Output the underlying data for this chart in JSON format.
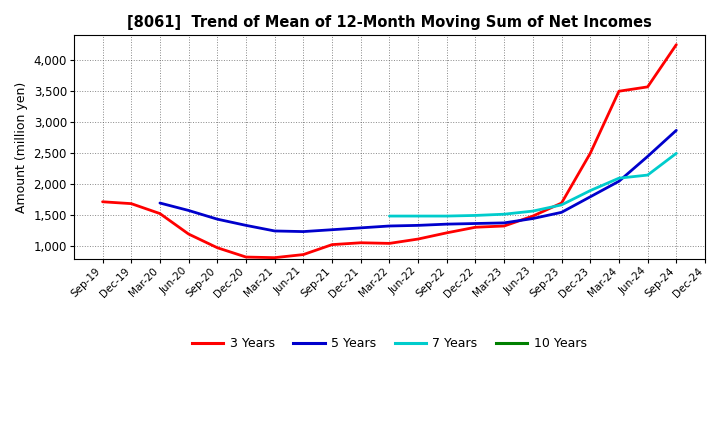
{
  "title": "[8061]  Trend of Mean of 12-Month Moving Sum of Net Incomes",
  "ylabel": "Amount (million yen)",
  "fig_bg_color": "#ffffff",
  "plot_bg_color": "#ffffff",
  "x_labels": [
    "Sep-19",
    "Dec-19",
    "Mar-20",
    "Jun-20",
    "Sep-20",
    "Dec-20",
    "Mar-21",
    "Jun-21",
    "Sep-21",
    "Dec-21",
    "Mar-22",
    "Jun-22",
    "Sep-22",
    "Dec-22",
    "Mar-23",
    "Jun-23",
    "Sep-23",
    "Dec-23",
    "Mar-24",
    "Jun-24",
    "Sep-24",
    "Dec-24"
  ],
  "ylim": [
    800,
    4400
  ],
  "yticks": [
    1000,
    1500,
    2000,
    2500,
    3000,
    3500,
    4000
  ],
  "series": {
    "3 Years": {
      "color": "#ff0000",
      "linewidth": 2.0,
      "values": [
        1720,
        1690,
        1530,
        1200,
        980,
        830,
        820,
        870,
        1030,
        1060,
        1050,
        1120,
        1220,
        1310,
        1330,
        1490,
        1700,
        2500,
        3500,
        3570,
        4250,
        null
      ]
    },
    "5 Years": {
      "color": "#0000cc",
      "linewidth": 2.0,
      "values": [
        null,
        null,
        1700,
        1580,
        1440,
        1340,
        1250,
        1240,
        1270,
        1300,
        1330,
        1340,
        1360,
        1370,
        1380,
        1450,
        1550,
        1800,
        2050,
        2450,
        2870,
        null
      ]
    },
    "7 Years": {
      "color": "#00cccc",
      "linewidth": 2.0,
      "values": [
        null,
        null,
        null,
        null,
        null,
        null,
        null,
        null,
        null,
        null,
        1490,
        1490,
        1490,
        1500,
        1520,
        1570,
        1670,
        1900,
        2100,
        2150,
        2500,
        null
      ]
    },
    "10 Years": {
      "color": "#008000",
      "linewidth": 2.0,
      "values": [
        null,
        null,
        null,
        null,
        null,
        null,
        null,
        null,
        null,
        null,
        null,
        null,
        null,
        null,
        null,
        null,
        null,
        null,
        null,
        null,
        null,
        null
      ]
    }
  },
  "legend_labels": [
    "3 Years",
    "5 Years",
    "7 Years",
    "10 Years"
  ],
  "legend_colors": [
    "#ff0000",
    "#0000cc",
    "#00cccc",
    "#008000"
  ]
}
